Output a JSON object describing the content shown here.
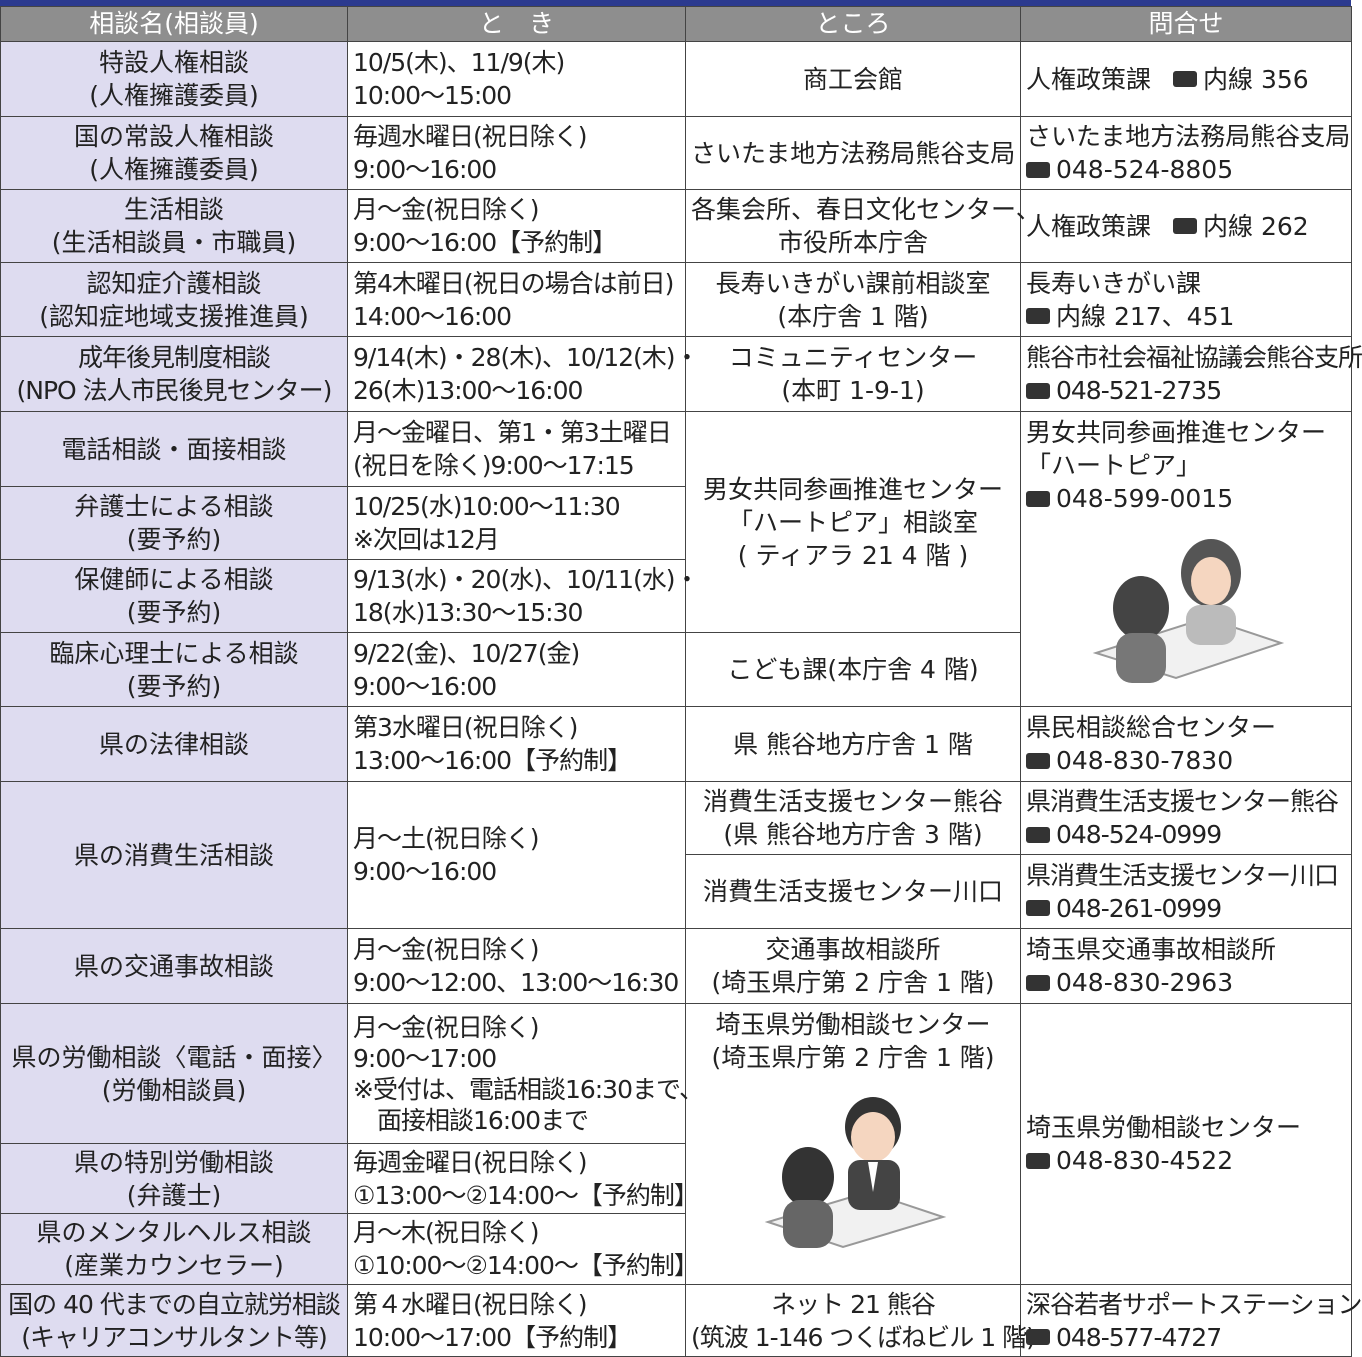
{
  "table": {
    "header": [
      "相談名(相談員)",
      "と　き",
      "ところ",
      "問合せ"
    ],
    "rows": [
      {
        "name": "特設人権相談\n(人権擁護委員)",
        "time": "10/5(木)、11/9(木)\n10:00～15:00",
        "place": "商工会館",
        "contact": {
          "org": "人権政策課",
          "tel": "内線 356"
        }
      },
      {
        "name": "国の常設人権相談\n(人権擁護委員)",
        "time": "毎週水曜日(祝日除く)\n9:00～16:00",
        "place": "さいたま地方法務局熊谷支局",
        "contact": {
          "org": "さいたま地方法務局熊谷支局",
          "tel": "048-524-8805"
        }
      },
      {
        "name": "生活相談\n(生活相談員・市職員)",
        "time": "月～金(祝日除く)\n9:00～16:00【予約制】",
        "place": "各集会所、春日文化センター、\n市役所本庁舎",
        "contact": {
          "org": "人権政策課",
          "tel": "内線 262"
        }
      },
      {
        "name": "認知症介護相談\n(認知症地域支援推進員)",
        "time": "第4木曜日(祝日の場合は前日)\n14:00～16:00",
        "place": "長寿いきがい課前相談室\n(本庁舎 1 階)",
        "contact": {
          "org": "長寿いきがい課",
          "tel": "内線 217、451"
        }
      },
      {
        "name": "成年後見制度相談\n(NPO 法人市民後見センター)",
        "time": "9/14(木)・28(木)、10/12(木)・\n26(木)13:00～16:00",
        "place": "コミュニティセンター\n(本町 1-9-1)",
        "contact": {
          "org": "熊谷市社会福祉協議会熊谷支所",
          "tel": "048-521-2735"
        }
      },
      {
        "name": "電話相談・面接相談",
        "time": "月～金曜日、第1・第3土曜日\n(祝日を除く)9:00～17:15",
        "place": "男女共同参画推進センター\n「ハートピア」相談室\n( ティアラ 21 4 階 )",
        "contact": {
          "org": "男女共同参画推進センター\n「ハートピア」",
          "tel": "048-599-0015"
        }
      },
      {
        "name": "弁護士による相談\n(要予約)",
        "time": "10/25(水)10:00～11:30\n※次回は12月"
      },
      {
        "name": "保健師による相談\n(要予約)",
        "time": "9/13(水)・20(水)、10/11(水)・\n18(水)13:30～15:30"
      },
      {
        "name": "臨床心理士による相談\n(要予約)",
        "time": "9/22(金)、10/27(金)\n9:00～16:00",
        "place": "こども課(本庁舎 4 階)"
      },
      {
        "name": "県の法律相談",
        "time": "第3水曜日(祝日除く)\n13:00～16:00【予約制】",
        "place": "県 熊谷地方庁舎 1 階",
        "contact": {
          "org": "県民相談総合センター",
          "tel": "048-830-7830"
        }
      },
      {
        "name": "県の消費生活相談",
        "time": "月～土(祝日除く)\n9:00～16:00",
        "place": "消費生活支援センター熊谷\n(県 熊谷地方庁舎 3 階)",
        "contact": {
          "org": "県消費生活支援センター熊谷",
          "tel": "048-524-0999"
        }
      },
      {
        "place": "消費生活支援センター川口",
        "contact": {
          "org": "県消費生活支援センター川口",
          "tel": "048-261-0999"
        }
      },
      {
        "name": "県の交通事故相談",
        "time": "月～金(祝日除く)\n9:00～12:00、13:00～16:30",
        "place": "交通事故相談所\n(埼玉県庁第 2 庁舎 1 階)",
        "contact": {
          "org": "埼玉県交通事故相談所",
          "tel": "048-830-2963"
        }
      },
      {
        "name": "県の労働相談〈電話・面接〉\n(労働相談員)",
        "time": "月～金(祝日除く)\n9:00～17:00\n※受付は、電話相談16:30まで、\n　面接相談16:00まで",
        "place": "埼玉県労働相談センター\n(埼玉県庁第 2 庁舎 1 階)",
        "contact": {
          "org": "埼玉県労働相談センター",
          "tel": "048-830-4522"
        }
      },
      {
        "name": "県の特別労働相談\n(弁護士)",
        "time": "毎週金曜日(祝日除く)\n①13:00～②14:00～【予約制】"
      },
      {
        "name": "県のメンタルヘルス相談\n(産業カウンセラー)",
        "time": "月～木(祝日除く)\n①10:00～②14:00～【予約制】"
      },
      {
        "name": "国の 40 代までの自立就労相談\n(キャリアコンサルタント等)",
        "time": "第４水曜日(祝日除く)\n10:00～17:00【予約制】",
        "place": "ネット 21 熊谷\n(筑波 1-146 つくばねビル 1 階)",
        "contact": {
          "org": "深谷若者サポートステーション",
          "tel": "048-577-4727"
        }
      }
    ]
  }
}
